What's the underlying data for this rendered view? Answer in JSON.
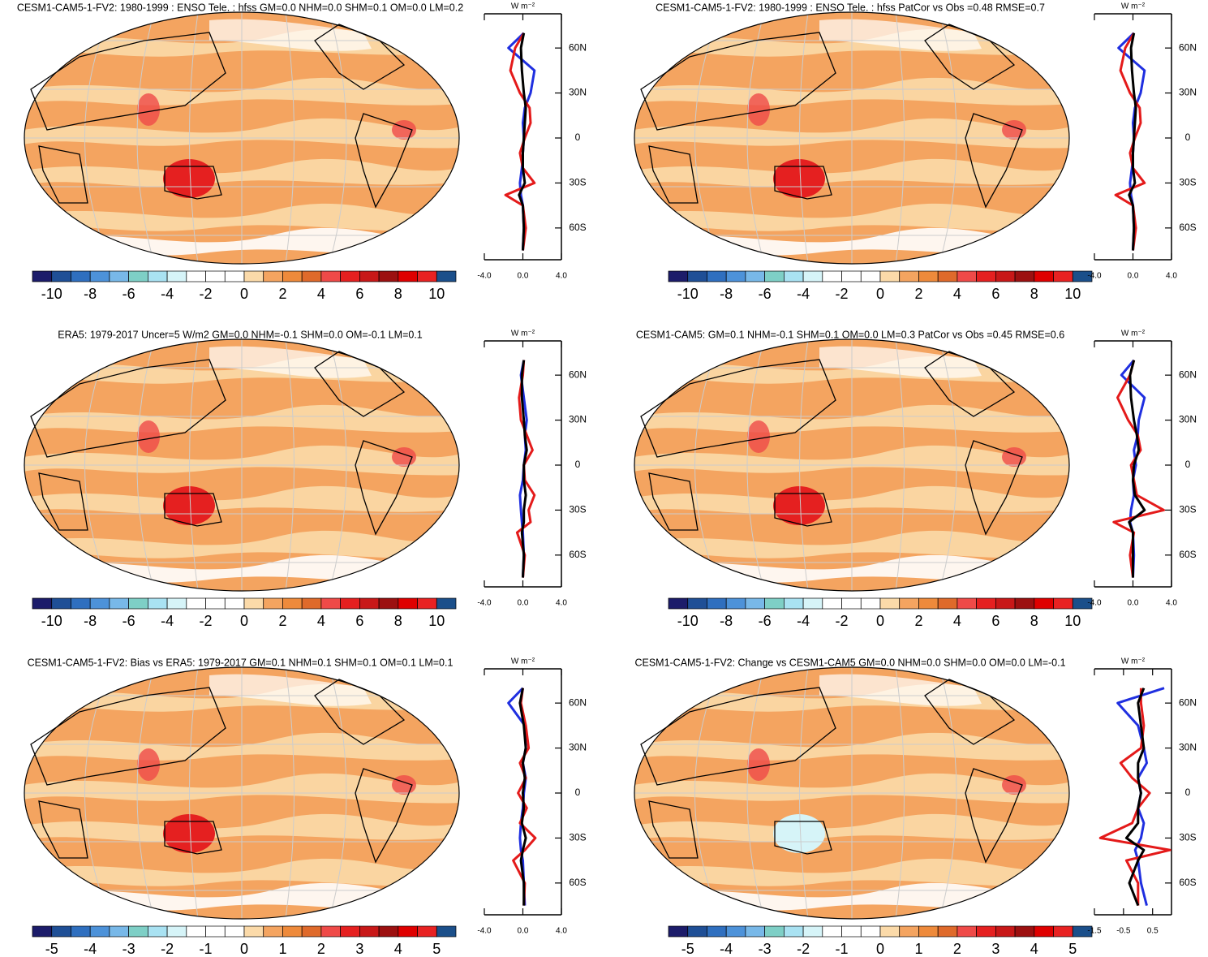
{
  "colorbar_colors": [
    "#1c1c6a",
    "#1f4f96",
    "#2f6fbf",
    "#4d92d9",
    "#78b8e8",
    "#7ecfc6",
    "#a9e2f2",
    "#d6f4f8",
    "#ffffff",
    "#ffffff",
    "#ffffff",
    "#fbdaa9",
    "#f4a460",
    "#ee8a3b",
    "#df6a2b",
    "#ef4a48",
    "#e52020",
    "#c81818",
    "#9c1010",
    "#df0000",
    "#e82222",
    "#1b4f8a"
  ],
  "panels": [
    {
      "title": "CESM1-CAM5-1-FV2: 1980-1999 : ENSO Tele. : hfss GM=0.0 NHM=0.0 SHM=0.1 OM=0.0 LM=0.2",
      "colorbar": {
        "labels": [
          "-10",
          "-8",
          "-6",
          "-4",
          "-2",
          "0",
          "2",
          "4",
          "6",
          "8",
          "10"
        ]
      },
      "zonal": {
        "unit": "W m⁻²",
        "xlim": [
          -4,
          4
        ],
        "ylim": [
          -82,
          82
        ],
        "xticks": [
          {
            "value": -4,
            "label": "-4.0"
          },
          {
            "value": 0,
            "label": "0.0"
          },
          {
            "value": 4,
            "label": "4.0"
          }
        ],
        "yticks": [
          {
            "value": 60,
            "label": "60N"
          },
          {
            "value": 30,
            "label": "30N"
          },
          0,
          {
            "value": -30,
            "label": "30S"
          },
          {
            "value": -60,
            "label": "60S"
          }
        ],
        "lat": [
          -75,
          -60,
          -45,
          -38,
          -30,
          -20,
          -10,
          0,
          10,
          20,
          30,
          45,
          60,
          70
        ],
        "series": [
          {
            "color": "#1f2fe0",
            "values": [
              0,
              0.1,
              0,
              -0.2,
              -0.3,
              -0.1,
              0,
              0.1,
              0,
              0.2,
              0.8,
              1.2,
              -1.5,
              0.1
            ]
          },
          {
            "color": "#e41a1a",
            "values": [
              0,
              0.3,
              0,
              -1.8,
              1.2,
              0,
              -0.3,
              0.2,
              0.8,
              0.7,
              -0.3,
              -1.3,
              -0.8,
              0.1
            ]
          },
          {
            "color": "#000000",
            "values": [
              0,
              0.1,
              0,
              -0.4,
              0.2,
              0,
              0,
              0.1,
              0.2,
              0.3,
              0.1,
              -0.1,
              -0.2,
              0.1
            ]
          }
        ]
      }
    },
    {
      "title": "CESM1-CAM5-1-FV2: 1980-1999 : ENSO Tele. : hfss PatCor vs Obs =0.48 RMSE=0.7",
      "colorbar": {
        "labels": [
          "-10",
          "-8",
          "-6",
          "-4",
          "-2",
          "0",
          "2",
          "4",
          "6",
          "8",
          "10"
        ]
      },
      "zonal": {
        "unit": "W m⁻²",
        "xlim": [
          -4,
          4
        ],
        "ylim": [
          -82,
          82
        ],
        "xticks": [
          {
            "value": -4,
            "label": "-4.0"
          },
          {
            "value": 0,
            "label": "0.0"
          },
          {
            "value": 4,
            "label": "4.0"
          }
        ],
        "yticks": [
          {
            "value": 60,
            "label": "60N"
          },
          {
            "value": 30,
            "label": "30N"
          },
          0,
          {
            "value": -30,
            "label": "30S"
          },
          {
            "value": -60,
            "label": "60S"
          }
        ],
        "lat": [
          -75,
          -60,
          -45,
          -38,
          -30,
          -20,
          -10,
          0,
          10,
          20,
          30,
          45,
          60,
          70
        ],
        "series": [
          {
            "color": "#1f2fe0",
            "values": [
              0,
              0.1,
              0,
              -0.2,
              -0.3,
              -0.1,
              0,
              0.1,
              0,
              0.2,
              0.8,
              1.2,
              -1.5,
              0.1
            ]
          },
          {
            "color": "#e41a1a",
            "values": [
              0,
              0.3,
              0,
              -1.8,
              1.2,
              0,
              -0.3,
              0.2,
              0.8,
              0.7,
              -0.3,
              -1.3,
              -0.8,
              0.1
            ]
          },
          {
            "color": "#000000",
            "values": [
              0,
              0.1,
              0,
              -0.4,
              0.2,
              0,
              0,
              0.1,
              0.2,
              0.3,
              0.1,
              -0.1,
              -0.2,
              0.1
            ]
          }
        ]
      }
    },
    {
      "title": "ERA5: 1979-2017 Uncer=5 W/m2 GM=0.0 NHM=-0.1 SHM=0.0 OM=-0.1 LM=0.1",
      "colorbar": {
        "labels": [
          "-10",
          "-8",
          "-6",
          "-4",
          "-2",
          "0",
          "2",
          "4",
          "6",
          "8",
          "10"
        ]
      },
      "zonal": {
        "unit": "W m⁻²",
        "xlim": [
          -4,
          4
        ],
        "ylim": [
          -82,
          82
        ],
        "xticks": [
          {
            "value": -4,
            "label": "-4.0"
          },
          {
            "value": 0,
            "label": "0.0"
          },
          {
            "value": 4,
            "label": "4.0"
          }
        ],
        "yticks": [
          {
            "value": 60,
            "label": "60N"
          },
          {
            "value": 30,
            "label": "30N"
          },
          0,
          {
            "value": -30,
            "label": "30S"
          },
          {
            "value": -60,
            "label": "60S"
          }
        ],
        "lat": [
          -75,
          -60,
          -45,
          -38,
          -30,
          -20,
          -10,
          0,
          10,
          20,
          30,
          45,
          60,
          70
        ],
        "series": [
          {
            "color": "#1f2fe0",
            "values": [
              0,
              0.1,
              0,
              -0.1,
              -0.2,
              -0.3,
              0,
              0.1,
              0.3,
              0.2,
              0.4,
              0.1,
              -0.2,
              0.1
            ]
          },
          {
            "color": "#e41a1a",
            "values": [
              0,
              0.2,
              -0.6,
              0.8,
              0.6,
              1.2,
              0.2,
              0.1,
              1.0,
              0.4,
              -0.2,
              -0.4,
              0,
              0.1
            ]
          },
          {
            "color": "#000000",
            "values": [
              0,
              0.1,
              -0.1,
              0.1,
              0.1,
              0.3,
              0.1,
              0.1,
              0.4,
              0.2,
              0.1,
              -0.1,
              -0.1,
              0.1
            ]
          }
        ]
      }
    },
    {
      "title": "CESM1-CAM5: GM=0.1 NHM=-0.1 SHM=0.1 OM=0.0 LM=0.3 PatCor vs Obs =0.45 RMSE=0.6",
      "colorbar": {
        "labels": [
          "-10",
          "-8",
          "-6",
          "-4",
          "-2",
          "0",
          "2",
          "4",
          "6",
          "8",
          "10"
        ]
      },
      "zonal": {
        "unit": "W m⁻²",
        "xlim": [
          -4,
          4
        ],
        "ylim": [
          -82,
          82
        ],
        "xticks": [
          {
            "value": -4,
            "label": "-4.0"
          },
          {
            "value": 0,
            "label": "0.0"
          },
          {
            "value": 4,
            "label": "4.0"
          }
        ],
        "yticks": [
          {
            "value": 60,
            "label": "60N"
          },
          {
            "value": 30,
            "label": "30N"
          },
          0,
          {
            "value": -30,
            "label": "30S"
          },
          {
            "value": -60,
            "label": "60S"
          }
        ],
        "lat": [
          -75,
          -60,
          -45,
          -38,
          -30,
          -20,
          -10,
          0,
          10,
          20,
          30,
          45,
          60,
          70
        ],
        "series": [
          {
            "color": "#1f2fe0",
            "values": [
              0,
              0.1,
              0,
              -0.3,
              -0.2,
              0.1,
              0,
              0.3,
              0.1,
              0.5,
              0.6,
              1.2,
              -1.2,
              0.1
            ]
          },
          {
            "color": "#e41a1a",
            "values": [
              0,
              -0.3,
              0.1,
              -2.0,
              3.2,
              0.4,
              0.1,
              -0.2,
              0.8,
              0.5,
              -0.5,
              -1.6,
              -0.3,
              0.1
            ]
          },
          {
            "color": "#000000",
            "values": [
              0,
              0,
              0,
              -0.4,
              1.2,
              0.2,
              0,
              0.1,
              0.6,
              0.4,
              0.1,
              -0.2,
              -0.3,
              0.1
            ]
          }
        ]
      }
    },
    {
      "title": "CESM1-CAM5-1-FV2: Bias vs ERA5: 1979-2017 GM=0.1 NHM=0.1 SHM=0.1 OM=0.1 LM=0.1",
      "colorbar": {
        "labels": [
          "-5",
          "-4",
          "-3",
          "-2",
          "-1",
          "0",
          "1",
          "2",
          "3",
          "4",
          "5"
        ]
      },
      "zonal": {
        "unit": "W m⁻²",
        "xlim": [
          -4,
          4
        ],
        "ylim": [
          -82,
          82
        ],
        "xticks": [
          {
            "value": -4,
            "label": "-4.0"
          },
          {
            "value": 0,
            "label": "0.0"
          },
          {
            "value": 4,
            "label": "4.0"
          }
        ],
        "yticks": [
          {
            "value": 60,
            "label": "60N"
          },
          {
            "value": 30,
            "label": "30N"
          },
          0,
          {
            "value": -30,
            "label": "30S"
          },
          {
            "value": -60,
            "label": "60S"
          }
        ],
        "lat": [
          -75,
          -60,
          -45,
          -38,
          -30,
          -20,
          -10,
          0,
          10,
          20,
          30,
          45,
          60,
          70
        ],
        "series": [
          {
            "color": "#1f2fe0",
            "values": [
              0.2,
              0.1,
              0,
              -0.2,
              -0.3,
              -0.2,
              0,
              0.1,
              0.3,
              0,
              0.3,
              0.2,
              -1.5,
              0
            ]
          },
          {
            "color": "#e41a1a",
            "values": [
              0.1,
              0.2,
              -1.0,
              0.2,
              1.3,
              -0.3,
              0.4,
              -0.5,
              0.3,
              -0.3,
              0.6,
              0.3,
              -0.2,
              0
            ]
          },
          {
            "color": "#000000",
            "values": [
              0.1,
              0.1,
              -0.2,
              0,
              0.3,
              -0.1,
              0.1,
              0,
              0.2,
              0,
              0.3,
              0.1,
              -0.3,
              0
            ]
          }
        ]
      }
    },
    {
      "title": "CESM1-CAM5-1-FV2: Change vs CESM1-CAM5 GM=0.0 NHM=0.0 SHM=0.0 OM=0.0 LM=-0.1",
      "colorbar": {
        "labels": [
          "-5",
          "-4",
          "-3",
          "-2",
          "-1",
          "0",
          "1",
          "2",
          "3",
          "4",
          "5"
        ]
      },
      "zonal": {
        "unit": "W m⁻²",
        "xlim": [
          -1.5,
          1.15
        ],
        "ylim": [
          -82,
          82
        ],
        "xticks": [
          {
            "value": -1.5,
            "label": "-1.5"
          },
          {
            "value": -0.5,
            "label": "-0.5"
          },
          {
            "value": 0.5,
            "label": "0.5"
          }
        ],
        "yticks": [
          {
            "value": 60,
            "label": "60N"
          },
          {
            "value": 30,
            "label": "30N"
          },
          0,
          {
            "value": -30,
            "label": "30S"
          },
          {
            "value": -60,
            "label": "60S"
          }
        ],
        "lat": [
          -75,
          -60,
          -45,
          -38,
          -30,
          -20,
          -10,
          0,
          10,
          20,
          30,
          45,
          60,
          70
        ],
        "series": [
          {
            "color": "#1f2fe0",
            "values": [
              0.3,
              0.1,
              0,
              -0.1,
              0.1,
              0.2,
              0,
              0.1,
              0,
              0.3,
              0.2,
              0,
              -0.7,
              0.9
            ]
          },
          {
            "color": "#e41a1a",
            "values": [
              0,
              0,
              -0.4,
              1.1,
              -1.3,
              -0.2,
              0,
              0.4,
              -0.2,
              -0.6,
              0.1,
              0.2,
              0.1,
              0.1
            ]
          },
          {
            "color": "#000000",
            "values": [
              0,
              -0.3,
              0,
              0.2,
              -0.4,
              0,
              0,
              0.1,
              0,
              0,
              0.2,
              0.1,
              0,
              0.2
            ]
          }
        ]
      }
    }
  ]
}
